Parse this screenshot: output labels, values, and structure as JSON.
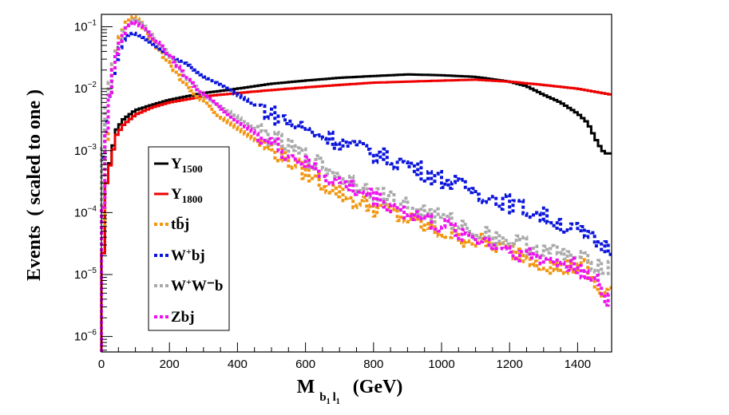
{
  "chart_data": {
    "type": "line",
    "title": "",
    "xlabel": {
      "main": "M",
      "sub": "b",
      "sub_idx1": "1",
      "sub2": "l",
      "sub_idx2": "1",
      "unit": "(GeV)"
    },
    "ylabel": "Events  ( scaled to one )",
    "xlim": [
      0,
      1500
    ],
    "ylim_log10": [
      -6.25,
      -0.8
    ],
    "x_ticks": [
      0,
      200,
      400,
      600,
      800,
      1000,
      1200,
      1400
    ],
    "x_tick_labels": [
      "0",
      "200",
      "400",
      "600",
      "800",
      "1000",
      "1200",
      "1400"
    ],
    "y_ticks_log10": [
      -6,
      -5,
      -4,
      -3,
      -2,
      -1
    ],
    "y_tick_labels": [
      {
        "base": "10",
        "exp": "−6"
      },
      {
        "base": "10",
        "exp": "−5"
      },
      {
        "base": "10",
        "exp": "−4"
      },
      {
        "base": "10",
        "exp": "−3"
      },
      {
        "base": "10",
        "exp": "−2"
      },
      {
        "base": "10",
        "exp": "−1"
      }
    ],
    "legend_position": "left-middle",
    "series": [
      {
        "name": "Y1500",
        "label": "Y",
        "sub": "1500",
        "sup": "",
        "color": "#000000",
        "style": "solid",
        "points": [
          [
            0,
            6e-06
          ],
          [
            15,
            0.0003
          ],
          [
            30,
            0.0009
          ],
          [
            45,
            0.0022
          ],
          [
            65,
            0.0032
          ],
          [
            100,
            0.0045
          ],
          [
            150,
            0.0055
          ],
          [
            200,
            0.0066
          ],
          [
            250,
            0.0075
          ],
          [
            300,
            0.0085
          ],
          [
            400,
            0.01
          ],
          [
            500,
            0.012
          ],
          [
            600,
            0.0135
          ],
          [
            700,
            0.015
          ],
          [
            800,
            0.016
          ],
          [
            900,
            0.017
          ],
          [
            1000,
            0.0165
          ],
          [
            1100,
            0.0155
          ],
          [
            1200,
            0.013
          ],
          [
            1250,
            0.011
          ],
          [
            1300,
            0.008
          ],
          [
            1350,
            0.006
          ],
          [
            1400,
            0.004
          ],
          [
            1430,
            0.0028
          ],
          [
            1460,
            0.0013
          ],
          [
            1480,
            0.0009
          ],
          [
            1500,
            0.0009
          ]
        ]
      },
      {
        "name": "Y1800",
        "label": "Y",
        "sub": "1800",
        "sup": "",
        "color": "#ee0000",
        "style": "solid",
        "points": [
          [
            0,
            6e-06
          ],
          [
            15,
            0.0003
          ],
          [
            30,
            0.0008
          ],
          [
            45,
            0.0018
          ],
          [
            65,
            0.0026
          ],
          [
            100,
            0.0038
          ],
          [
            150,
            0.005
          ],
          [
            200,
            0.006
          ],
          [
            300,
            0.0075
          ],
          [
            400,
            0.0085
          ],
          [
            500,
            0.0095
          ],
          [
            600,
            0.0105
          ],
          [
            700,
            0.0115
          ],
          [
            800,
            0.0125
          ],
          [
            900,
            0.013
          ],
          [
            1000,
            0.0135
          ],
          [
            1100,
            0.014
          ],
          [
            1200,
            0.013
          ],
          [
            1300,
            0.0115
          ],
          [
            1400,
            0.01
          ],
          [
            1500,
            0.008
          ]
        ]
      },
      {
        "name": "tbarj",
        "label": "tb̄j",
        "sub": "",
        "sup": "",
        "color": "#f0960f",
        "style": "dashed",
        "points": [
          [
            0,
            8e-06
          ],
          [
            10,
            0.0004
          ],
          [
            20,
            0.005
          ],
          [
            35,
            0.025
          ],
          [
            50,
            0.06
          ],
          [
            70,
            0.11
          ],
          [
            90,
            0.15
          ],
          [
            110,
            0.13
          ],
          [
            140,
            0.07
          ],
          [
            180,
            0.035
          ],
          [
            250,
            0.011
          ],
          [
            350,
            0.0035
          ],
          [
            450,
            0.0015
          ],
          [
            550,
            0.0007
          ],
          [
            650,
            0.0003
          ],
          [
            750,
            0.00015
          ],
          [
            850,
            0.0001
          ],
          [
            950,
            6e-05
          ],
          [
            1050,
            4e-05
          ],
          [
            1150,
            3e-05
          ],
          [
            1250,
            2e-05
          ],
          [
            1350,
            1.2e-05
          ],
          [
            1420,
            1.5e-05
          ],
          [
            1460,
            5e-06
          ],
          [
            1500,
            6e-06
          ]
        ]
      },
      {
        "name": "W+bj",
        "label": "W",
        "sub": "",
        "sup": "+",
        "suffix": "bj",
        "color": "#0a14dc",
        "style": "dashed",
        "points": [
          [
            0,
            0.0004
          ],
          [
            15,
            0.003
          ],
          [
            30,
            0.012
          ],
          [
            50,
            0.04
          ],
          [
            70,
            0.07
          ],
          [
            90,
            0.08
          ],
          [
            120,
            0.07
          ],
          [
            160,
            0.05
          ],
          [
            200,
            0.035
          ],
          [
            250,
            0.025
          ],
          [
            300,
            0.016
          ],
          [
            400,
            0.008
          ],
          [
            500,
            0.004
          ],
          [
            600,
            0.0022
          ],
          [
            700,
            0.0014
          ],
          [
            800,
            0.0009
          ],
          [
            900,
            0.0006
          ],
          [
            1000,
            0.00035
          ],
          [
            1100,
            0.00022
          ],
          [
            1200,
            0.00014
          ],
          [
            1300,
            9e-05
          ],
          [
            1400,
            5e-05
          ],
          [
            1450,
            3.5e-05
          ],
          [
            1500,
            2.5e-05
          ]
        ]
      },
      {
        "name": "W+W-b",
        "label": "W",
        "sub": "",
        "sup": "+",
        "suffix": "W⁻b",
        "color": "#aaaaaa",
        "style": "dashed",
        "points": [
          [
            0,
            0.0005
          ],
          [
            15,
            0.005
          ],
          [
            30,
            0.02
          ],
          [
            50,
            0.05
          ],
          [
            70,
            0.1
          ],
          [
            95,
            0.13
          ],
          [
            120,
            0.11
          ],
          [
            160,
            0.06
          ],
          [
            200,
            0.035
          ],
          [
            250,
            0.015
          ],
          [
            300,
            0.008
          ],
          [
            400,
            0.0035
          ],
          [
            500,
            0.0016
          ],
          [
            600,
            0.0008
          ],
          [
            700,
            0.0004
          ],
          [
            800,
            0.00022
          ],
          [
            900,
            0.00013
          ],
          [
            1000,
            8e-05
          ],
          [
            1100,
            5e-05
          ],
          [
            1200,
            3.5e-05
          ],
          [
            1300,
            2.5e-05
          ],
          [
            1400,
            1.8e-05
          ],
          [
            1500,
            1.3e-05
          ]
        ]
      },
      {
        "name": "Zbj",
        "label": "Zbj",
        "sub": "",
        "sup": "",
        "color": "#ee12ee",
        "style": "dashed",
        "points": [
          [
            0,
            3e-05
          ],
          [
            15,
            0.002
          ],
          [
            30,
            0.015
          ],
          [
            50,
            0.05
          ],
          [
            70,
            0.09
          ],
          [
            95,
            0.12
          ],
          [
            120,
            0.1
          ],
          [
            160,
            0.06
          ],
          [
            200,
            0.035
          ],
          [
            250,
            0.015
          ],
          [
            300,
            0.008
          ],
          [
            400,
            0.003
          ],
          [
            500,
            0.0013
          ],
          [
            600,
            0.0006
          ],
          [
            700,
            0.0003
          ],
          [
            800,
            0.00018
          ],
          [
            900,
            0.0001
          ],
          [
            1000,
            6e-05
          ],
          [
            1100,
            4e-05
          ],
          [
            1200,
            2.5e-05
          ],
          [
            1300,
            1.8e-05
          ],
          [
            1400,
            1.3e-05
          ],
          [
            1450,
            1e-05
          ],
          [
            1480,
            3e-06
          ],
          [
            1500,
            6e-06
          ]
        ]
      }
    ]
  }
}
